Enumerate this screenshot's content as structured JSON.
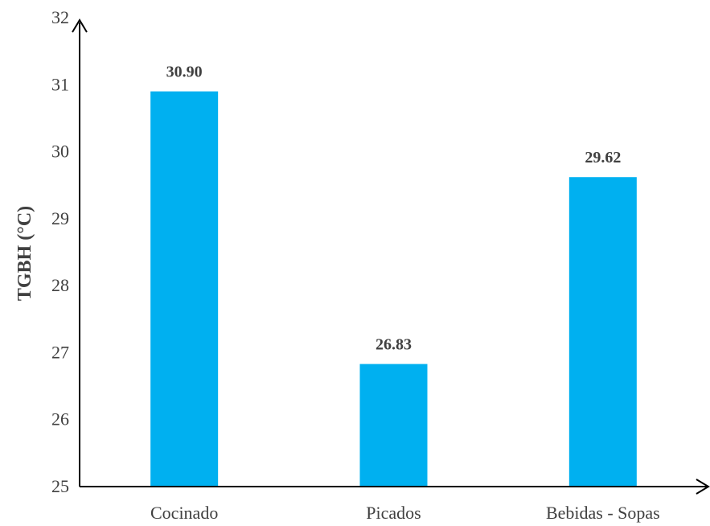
{
  "chart_data": {
    "type": "bar",
    "title": "",
    "xlabel": "",
    "ylabel": "TGBH  (°C)",
    "categories": [
      "Cocinado",
      "Picados",
      "Bebidas - Sopas"
    ],
    "values": [
      30.9,
      26.83,
      29.62
    ],
    "value_labels": [
      "30.90",
      "26.83",
      "29.62"
    ],
    "ylim": [
      25,
      32
    ],
    "yticks": [
      "25",
      "26",
      "27",
      "28",
      "29",
      "30",
      "31",
      "32"
    ],
    "bar_color": "#00B0F0",
    "axis_color": "#000000",
    "text_color": "#404040",
    "grid": false,
    "legend": "none"
  }
}
